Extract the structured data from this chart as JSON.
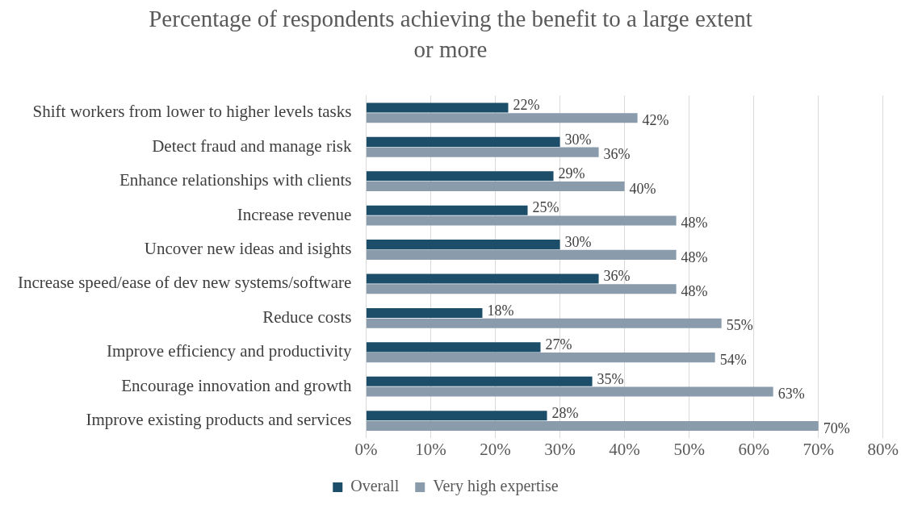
{
  "chart_data": {
    "type": "bar",
    "orientation": "horizontal",
    "title": "Percentage of respondents achieving the benefit to a large extent or more",
    "categories": [
      "Shift workers from lower to higher levels tasks",
      "Detect fraud and manage risk",
      "Enhance relationships with clients",
      "Increase revenue",
      "Uncover new ideas and isights",
      "Increase speed/ease of dev new systems/software",
      "Reduce costs",
      "Improve efficiency and productivity",
      "Encourage innovation and growth",
      "Improve existing products and services"
    ],
    "series": [
      {
        "name": "Overall",
        "color": "#1c4e6a",
        "values": [
          22,
          30,
          29,
          25,
          30,
          36,
          18,
          27,
          35,
          28
        ],
        "value_labels": [
          "22%",
          "30%",
          "29%",
          "25%",
          "30%",
          "36%",
          "18%",
          "27%",
          "35%",
          "28%"
        ]
      },
      {
        "name": "Very high expertise",
        "color": "#8a9bab",
        "values": [
          42,
          36,
          40,
          48,
          48,
          48,
          55,
          54,
          63,
          70
        ],
        "value_labels": [
          "42%",
          "36%",
          "40%",
          "48%",
          "48%",
          "48%",
          "55%",
          "54%",
          "63%",
          "70%"
        ]
      }
    ],
    "xlim": [
      0,
      80
    ],
    "xticks": [
      {
        "value": 0,
        "label": "0%"
      },
      {
        "value": 10,
        "label": "10%"
      },
      {
        "value": 20,
        "label": "20%"
      },
      {
        "value": 30,
        "label": "30%"
      },
      {
        "value": 40,
        "label": "40%"
      },
      {
        "value": 50,
        "label": "50%"
      },
      {
        "value": 60,
        "label": "60%"
      },
      {
        "value": 70,
        "label": "70%"
      },
      {
        "value": 80,
        "label": "80%"
      }
    ],
    "grid": "x",
    "legend": "bottom"
  }
}
